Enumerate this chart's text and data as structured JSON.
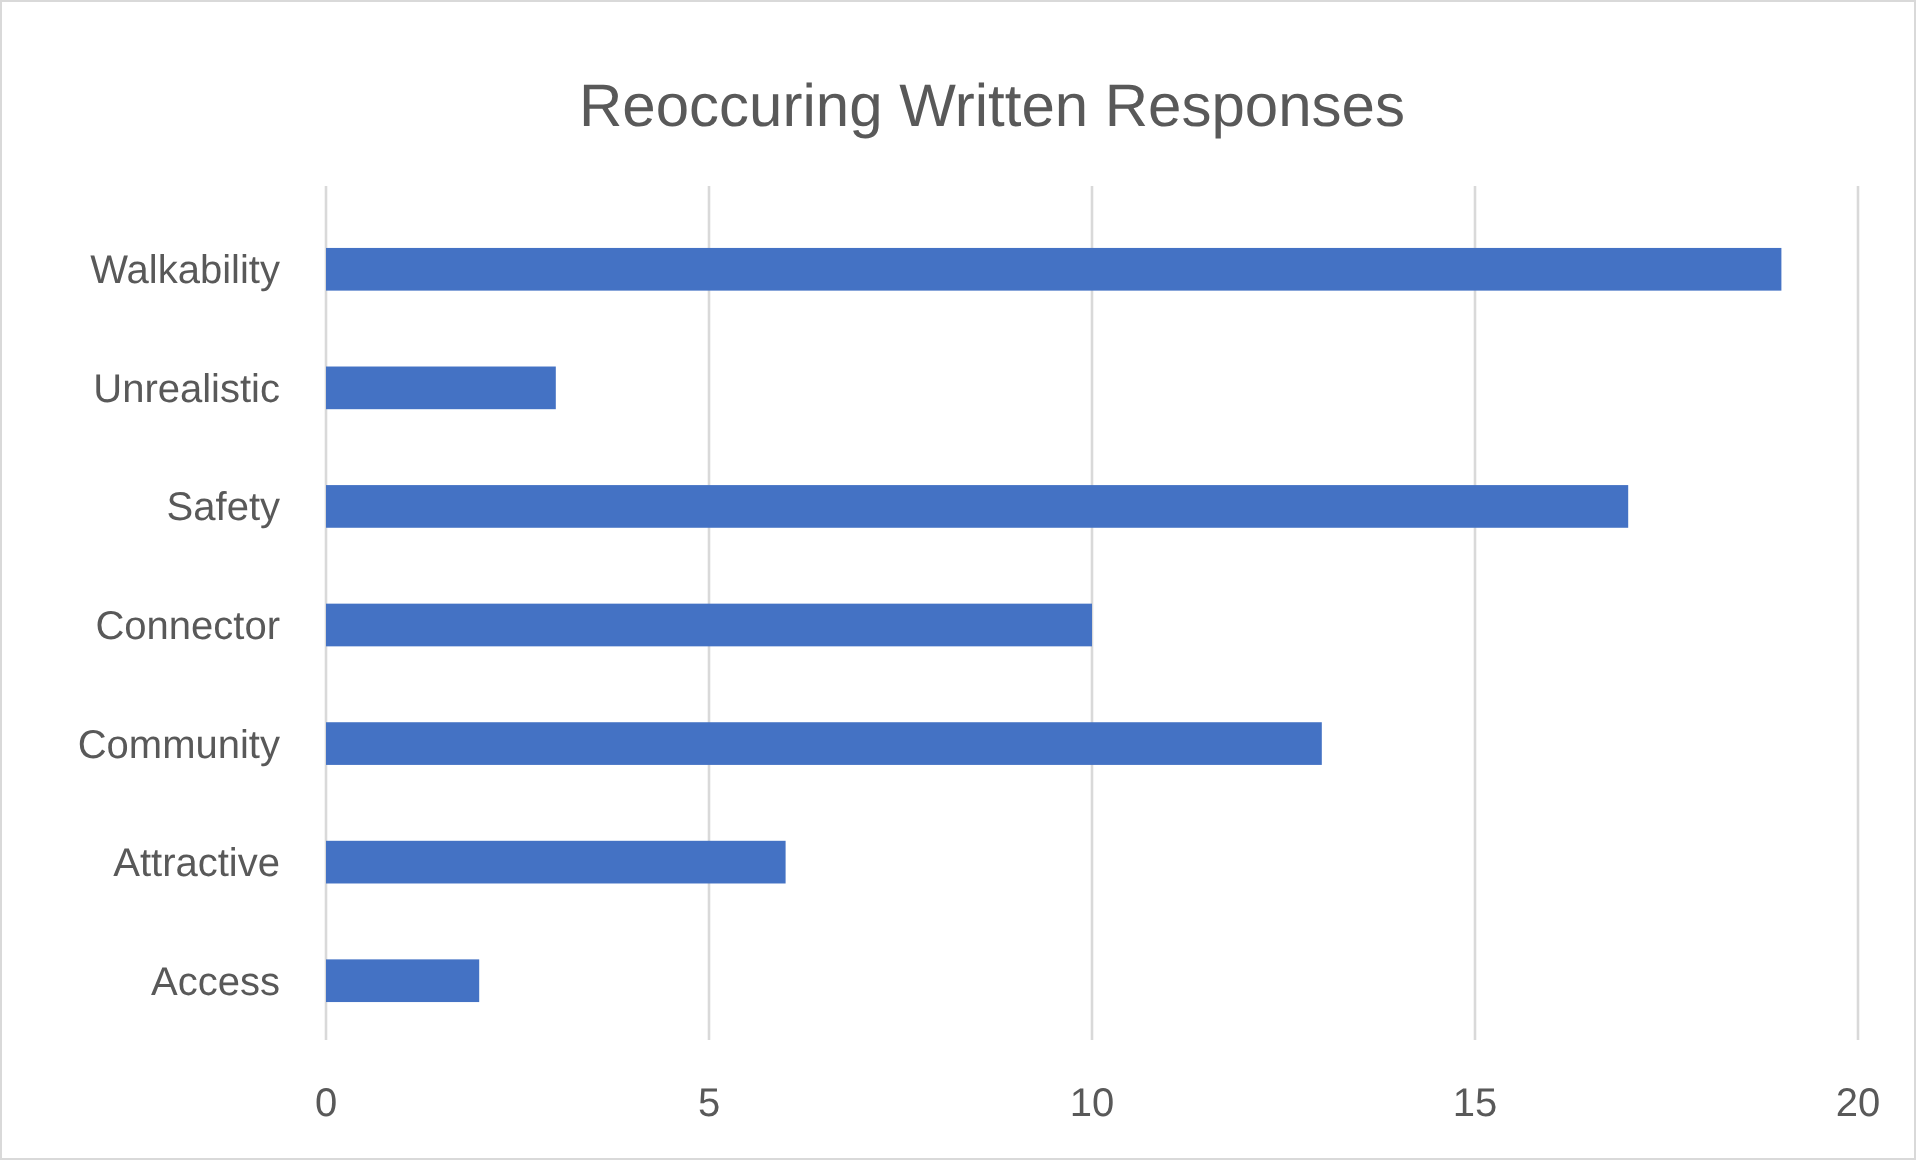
{
  "chart_data": {
    "type": "bar",
    "orientation": "horizontal",
    "title": "Reoccuring Written Responses",
    "categories": [
      "Walkability",
      "Unrealistic",
      "Safety",
      "Connector",
      "Community",
      "Attractive",
      "Access"
    ],
    "values": [
      19,
      3,
      17,
      10,
      13,
      6,
      2
    ],
    "color": "#4472c4",
    "xlim": [
      0,
      20
    ],
    "xticks": [
      0,
      5,
      10,
      15,
      20
    ],
    "grid": "x"
  }
}
